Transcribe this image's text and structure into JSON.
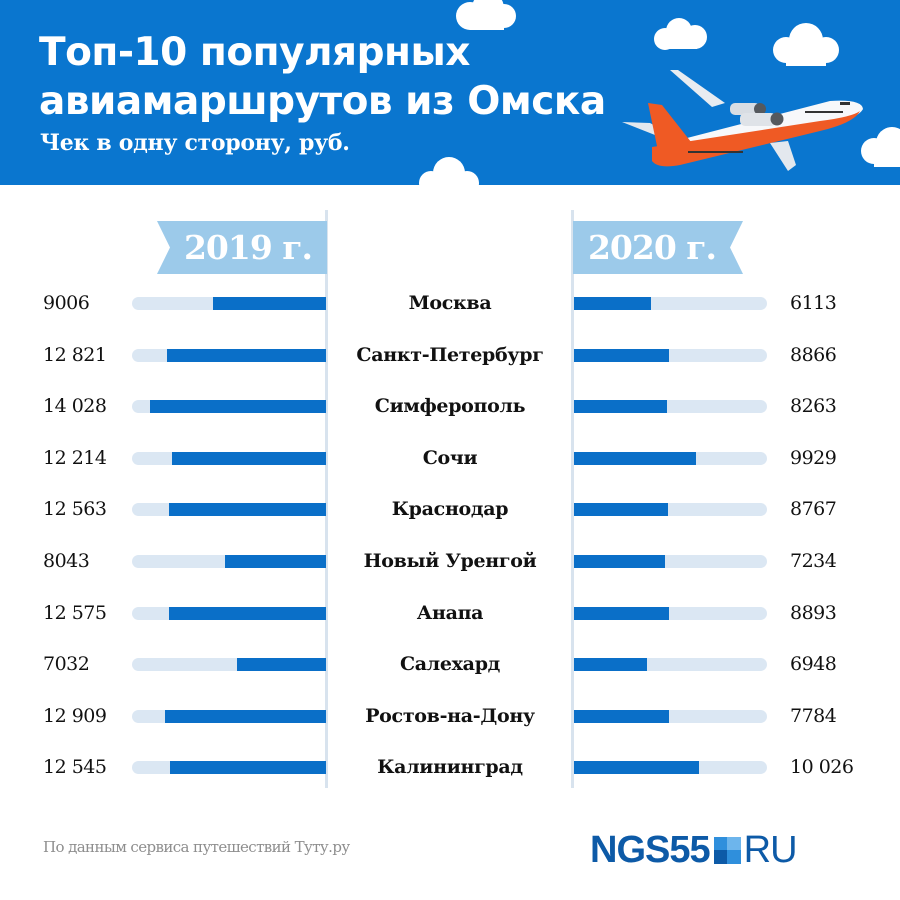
{
  "header": {
    "title_line1": "Топ-10 популярных",
    "title_line2": "авиамаршрутов из Омска",
    "subtitle": "Чек в одну сторону, руб.",
    "background_color": "#0a76cf",
    "illustration": "airplane-icon"
  },
  "columns": {
    "left_year": "2019 г.",
    "right_year": "2020 г."
  },
  "rows": [
    {
      "city": "Москва",
      "v2019": "9006",
      "v2020": "6113",
      "w2019": 113,
      "w2020": 77
    },
    {
      "city": "Санкт-Петербург",
      "v2019": "12 821",
      "v2020": "8866",
      "w2019": 159,
      "w2020": 95
    },
    {
      "city": "Симферополь",
      "v2019": "14 028",
      "v2020": "8263",
      "w2019": 176,
      "w2020": 93
    },
    {
      "city": "Сочи",
      "v2019": "12 214",
      "v2020": "9929",
      "w2019": 154,
      "w2020": 122
    },
    {
      "city": "Краснодар",
      "v2019": "12 563",
      "v2020": "8767",
      "w2019": 157,
      "w2020": 94
    },
    {
      "city": "Новый Уренгой",
      "v2019": "8043",
      "v2020": "7234",
      "w2019": 101,
      "w2020": 91
    },
    {
      "city": "Анапа",
      "v2019": "12 575",
      "v2020": "8893",
      "w2019": 157,
      "w2020": 95
    },
    {
      "city": "Салехард",
      "v2019": "7032",
      "v2020": "6948",
      "w2019": 89,
      "w2020": 73
    },
    {
      "city": "Ростов-на-Дону",
      "v2019": "12 909",
      "v2020": "7784",
      "w2019": 161,
      "w2020": 95
    },
    {
      "city": "Калининград",
      "v2019": "12 545",
      "v2020": "10 026",
      "w2019": 156,
      "w2020": 125
    }
  ],
  "footer": {
    "source": "По данным сервиса путешествий Туту.ру",
    "logo_left": "NGS55",
    "logo_right": "RU"
  },
  "colors": {
    "bar_fill": "#0a6fc8",
    "bar_track": "#dbe7f3",
    "year_tag": "#9ccaea",
    "divider": "#d8e3ee",
    "logo": "#0d5aa7"
  },
  "chart_data": {
    "type": "bar",
    "title": "Топ-10 популярных авиамаршрутов из Омска",
    "subtitle": "Чек в одну сторону, руб.",
    "orientation": "horizontal",
    "layout": "butterfly (2019 left, 2020 right)",
    "categories": [
      "Москва",
      "Санкт-Петербург",
      "Симферополь",
      "Сочи",
      "Краснодар",
      "Новый Уренгой",
      "Анапа",
      "Салехард",
      "Ростов-на-Дону",
      "Калининград"
    ],
    "series": [
      {
        "name": "2019 г.",
        "values": [
          9006,
          12821,
          14028,
          12214,
          12563,
          8043,
          12575,
          7032,
          12909,
          12545
        ]
      },
      {
        "name": "2020 г.",
        "values": [
          6113,
          8866,
          8263,
          9929,
          8767,
          7234,
          8893,
          6948,
          7784,
          10026
        ]
      }
    ],
    "xlabel": "",
    "ylabel": "",
    "unit": "руб.",
    "grid": false,
    "legend": "year tags above each side",
    "source": "По данным сервиса путешествий Туту.ру"
  }
}
